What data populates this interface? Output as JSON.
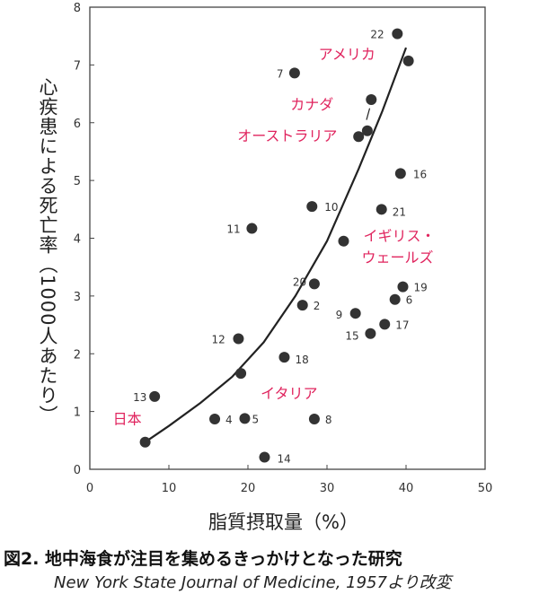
{
  "chart_data": {
    "type": "scatter",
    "title": "",
    "xlabel": "脂質摂取量（%）",
    "ylabel": "心疾患による死亡率（1000人あたり）",
    "xlim": [
      0,
      50
    ],
    "ylim": [
      0,
      8
    ],
    "xticks": [
      0,
      10,
      20,
      30,
      40,
      50
    ],
    "yticks": [
      0,
      1,
      2,
      3,
      4,
      5,
      6,
      7,
      8
    ],
    "point_color": "#333333",
    "label_color": "#e0245e",
    "points": [
      {
        "x": 7.0,
        "y": 0.47,
        "label": "日本"
      },
      {
        "x": 8.2,
        "y": 1.26,
        "label": "13"
      },
      {
        "x": 15.8,
        "y": 0.87,
        "label": "4"
      },
      {
        "x": 19.6,
        "y": 0.88,
        "label": "5"
      },
      {
        "x": 18.8,
        "y": 2.26,
        "label": "12"
      },
      {
        "x": 19.1,
        "y": 1.66,
        "label": "イタリア"
      },
      {
        "x": 22.1,
        "y": 0.21,
        "label": "14"
      },
      {
        "x": 20.5,
        "y": 4.17,
        "label": "11"
      },
      {
        "x": 24.6,
        "y": 1.94,
        "label": "18"
      },
      {
        "x": 26.9,
        "y": 2.84,
        "label": "2"
      },
      {
        "x": 28.4,
        "y": 0.87,
        "label": "8"
      },
      {
        "x": 28.1,
        "y": 4.55,
        "label": "10"
      },
      {
        "x": 28.4,
        "y": 3.21,
        "label": "20"
      },
      {
        "x": 25.9,
        "y": 6.86,
        "label": "7"
      },
      {
        "x": 32.1,
        "y": 3.95,
        "label": "イギリス・ウェールズ"
      },
      {
        "x": 33.6,
        "y": 2.7,
        "label": "9"
      },
      {
        "x": 34.0,
        "y": 5.76,
        "label": "オーストラリア"
      },
      {
        "x": 35.1,
        "y": 5.86,
        "label": ""
      },
      {
        "x": 35.6,
        "y": 6.4,
        "label": "カナダ"
      },
      {
        "x": 35.5,
        "y": 2.35,
        "label": "15"
      },
      {
        "x": 36.9,
        "y": 4.5,
        "label": "21"
      },
      {
        "x": 37.3,
        "y": 2.51,
        "label": "17"
      },
      {
        "x": 38.6,
        "y": 2.94,
        "label": "6"
      },
      {
        "x": 39.6,
        "y": 3.16,
        "label": "19"
      },
      {
        "x": 39.3,
        "y": 5.12,
        "label": "16"
      },
      {
        "x": 38.9,
        "y": 7.54,
        "label": "22"
      },
      {
        "x": 40.3,
        "y": 7.07,
        "label": "アメリカ"
      }
    ],
    "trend": {
      "x": [
        7,
        10,
        14,
        18,
        22,
        26,
        30,
        34,
        37,
        40
      ],
      "y": [
        0.47,
        0.75,
        1.15,
        1.6,
        2.2,
        3.0,
        3.95,
        5.2,
        6.2,
        7.3
      ]
    }
  },
  "caption": {
    "title": "図2.  地中海食が注目を集めるきっかけとなった研究",
    "source": "New York State Journal of Medicine, 1957より改変"
  }
}
